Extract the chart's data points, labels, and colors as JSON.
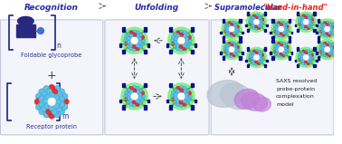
{
  "title_recognition": "Recognition",
  "title_unfolding": "Unfolding",
  "title_supra": "Supramolecular ",
  "title_hand": "\"hand-in-hand\"",
  "label_glycoprobe": "Foldable glycoprobe",
  "label_receptor": "Receptor protein",
  "label_saxs1": "SAXS resolved",
  "label_saxs2": "probe-protein",
  "label_saxs3": "complexation",
  "label_saxs4": "model",
  "bg_color": "#eef0f8",
  "box_facecolor": "#e8ecf8",
  "box_edge": "#9090c0",
  "sphere_blue": "#60c0e8",
  "sphere_blue2": "#88d0f0",
  "sphere_red": "#e83030",
  "glow_green": "#80f080",
  "arm_green": "#48c848",
  "rect_blue": "#10108a",
  "arrow_color": "#505050",
  "hand_color": "#e82020",
  "title_color": "#2828a8",
  "text_color": "#303090",
  "protein_purple": "#c080d8",
  "protein_gray": "#b8c4d0",
  "panel_bg": "#f0f2fc"
}
